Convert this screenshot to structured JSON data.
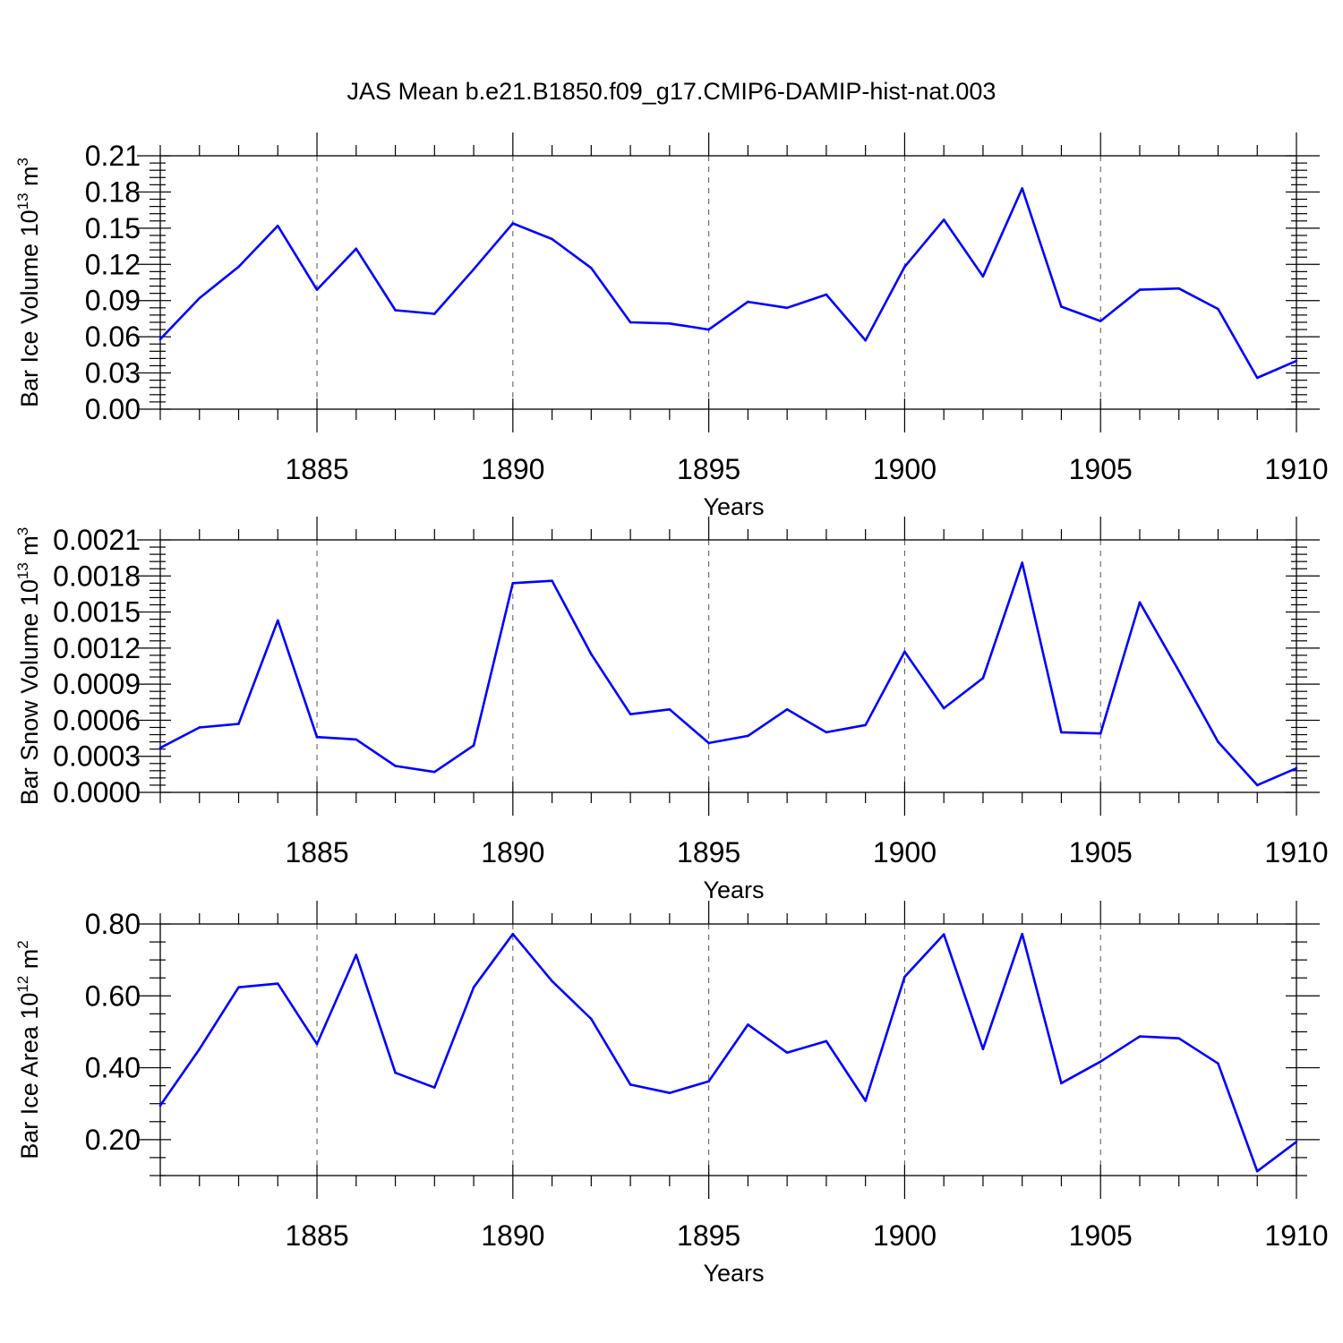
{
  "title": "JAS Mean b.e21.B1850.f09_g17.CMIP6-DAMIP-hist-nat.003",
  "colors": {
    "series": "#0000ff",
    "axes": "#000000",
    "grid": "#555555"
  },
  "chart_data": [
    {
      "type": "line",
      "ylabel_main": "Bar Ice Volume 10",
      "ylabel_exp": "13",
      "ylabel_unit": "m",
      "ylabel_unit_exp": "3",
      "xlabel": "Years",
      "xlim": [
        1881,
        1910
      ],
      "ylim": [
        0,
        0.21
      ],
      "yticks": [
        0,
        0.03,
        0.06,
        0.09,
        0.12,
        0.15,
        0.18,
        0.21
      ],
      "ytick_labels": [
        "0.00",
        "0.03",
        "0.06",
        "0.09",
        "0.12",
        "0.15",
        "0.18",
        "0.21"
      ],
      "yminor_step": 0.006,
      "xticks": [
        1885,
        1890,
        1895,
        1900,
        1905,
        1910
      ],
      "xtick_labels": [
        "1885",
        "1890",
        "1895",
        "1900",
        "1905",
        "1910"
      ],
      "grid": "dashed vertical at major x ticks",
      "x": [
        1881,
        1882,
        1883,
        1884,
        1885,
        1886,
        1887,
        1888,
        1889,
        1890,
        1891,
        1892,
        1893,
        1894,
        1895,
        1896,
        1897,
        1898,
        1899,
        1900,
        1901,
        1902,
        1903,
        1904,
        1905,
        1906,
        1907,
        1908,
        1909,
        1910
      ],
      "series": [
        {
          "name": "Bar Ice Volume",
          "values": [
            0.058,
            0.092,
            0.118,
            0.152,
            0.099,
            0.133,
            0.082,
            0.079,
            0.116,
            0.154,
            0.141,
            0.117,
            0.072,
            0.071,
            0.066,
            0.089,
            0.084,
            0.095,
            0.057,
            0.118,
            0.157,
            0.11,
            0.183,
            0.085,
            0.073,
            0.099,
            0.1,
            0.083,
            0.026,
            0.04
          ]
        }
      ]
    },
    {
      "type": "line",
      "ylabel_main": "Bar Snow Volume 10",
      "ylabel_exp": "13",
      "ylabel_unit": "m",
      "ylabel_unit_exp": "3",
      "xlabel": "Years",
      "xlim": [
        1881,
        1910
      ],
      "ylim": [
        0,
        0.0021
      ],
      "yticks": [
        0,
        0.0003,
        0.0006,
        0.0009,
        0.0012,
        0.0015,
        0.0018,
        0.0021
      ],
      "ytick_labels": [
        "0.0000",
        "0.0003",
        "0.0006",
        "0.0009",
        "0.0012",
        "0.0015",
        "0.0018",
        "0.0021"
      ],
      "yminor_step": 6e-05,
      "xticks": [
        1885,
        1890,
        1895,
        1900,
        1905,
        1910
      ],
      "xtick_labels": [
        "1885",
        "1890",
        "1895",
        "1900",
        "1905",
        "1910"
      ],
      "grid": "dashed vertical at major x ticks",
      "x": [
        1881,
        1882,
        1883,
        1884,
        1885,
        1886,
        1887,
        1888,
        1889,
        1890,
        1891,
        1892,
        1893,
        1894,
        1895,
        1896,
        1897,
        1898,
        1899,
        1900,
        1901,
        1902,
        1903,
        1904,
        1905,
        1906,
        1907,
        1908,
        1909,
        1910
      ],
      "series": [
        {
          "name": "Bar Snow Volume",
          "values": [
            0.00037,
            0.00054,
            0.00057,
            0.00143,
            0.00046,
            0.00044,
            0.00022,
            0.00017,
            0.00039,
            0.00174,
            0.00176,
            0.00115,
            0.00065,
            0.00069,
            0.00041,
            0.00047,
            0.00069,
            0.0005,
            0.00056,
            0.00117,
            0.0007,
            0.00095,
            0.00191,
            0.0005,
            0.00049,
            0.00158,
            0.00101,
            0.00042,
            6e-05,
            0.0002
          ]
        }
      ]
    },
    {
      "type": "line",
      "ylabel_main": "Bar Ice Area 10",
      "ylabel_exp": "12",
      "ylabel_unit": "m",
      "ylabel_unit_exp": "2",
      "xlabel": "Years",
      "xlim": [
        1881,
        1910
      ],
      "ylim": [
        0.1,
        0.8
      ],
      "yticks": [
        0.2,
        0.4,
        0.6,
        0.8
      ],
      "ytick_labels": [
        "0.20",
        "0.40",
        "0.60",
        "0.80"
      ],
      "yminor_step": 0.05,
      "xticks": [
        1885,
        1890,
        1895,
        1900,
        1905,
        1910
      ],
      "xtick_labels": [
        "1885",
        "1890",
        "1895",
        "1900",
        "1905",
        "1910"
      ],
      "grid": "dashed vertical at major x ticks",
      "x": [
        1881,
        1882,
        1883,
        1884,
        1885,
        1886,
        1887,
        1888,
        1889,
        1890,
        1891,
        1892,
        1893,
        1894,
        1895,
        1896,
        1897,
        1898,
        1899,
        1900,
        1901,
        1902,
        1903,
        1904,
        1905,
        1906,
        1907,
        1908,
        1909,
        1910
      ],
      "series": [
        {
          "name": "Bar Ice Area",
          "values": [
            0.295,
            0.452,
            0.624,
            0.634,
            0.466,
            0.714,
            0.386,
            0.345,
            0.624,
            0.772,
            0.641,
            0.536,
            0.353,
            0.33,
            0.362,
            0.52,
            0.442,
            0.474,
            0.308,
            0.653,
            0.771,
            0.452,
            0.772,
            0.357,
            0.417,
            0.487,
            0.482,
            0.412,
            0.112,
            0.194
          ]
        }
      ]
    }
  ]
}
